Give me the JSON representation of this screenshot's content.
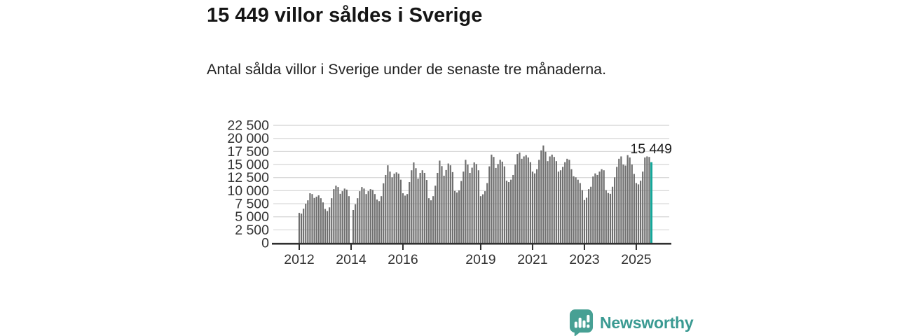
{
  "page": {
    "title": "15 449 villor såldes i Sverige",
    "subtitle": "Antal sålda villor i Sverige under de senaste tre månaderna."
  },
  "footer": {
    "brand": "Newsworthy"
  },
  "colors": {
    "bar": "#6f6f6f",
    "highlight": "#15a79a",
    "grid": "#d9d9d9",
    "axis": "#2f2f2f",
    "tick_text": "#333333",
    "annotation_text": "#1a1a1a",
    "brand": "#3a9a92",
    "brand_icon": "#47a094"
  },
  "chart_data": {
    "type": "bar",
    "title": "15 449 villor såldes i Sverige",
    "subtitle": "Antal sålda villor i Sverige under de senaste tre månaderna.",
    "ylabel": "",
    "xlabel": "",
    "frequency": "monthly",
    "x_start": "2012-01",
    "x_end": "2025-08",
    "missing_months": [
      "2014-01"
    ],
    "ylim": [
      0,
      22500
    ],
    "grid": true,
    "y_ticks": [
      0,
      2500,
      5000,
      7500,
      10000,
      12500,
      15000,
      17500,
      20000,
      22500
    ],
    "y_tick_labels": [
      "0",
      "2 500",
      "5 000",
      "7 500",
      "10 000",
      "12 500",
      "15 000",
      "17 500",
      "20 000",
      "22 500"
    ],
    "x_ticks": [
      {
        "label": "2012",
        "month_index": 0
      },
      {
        "label": "2014",
        "month_index": 24
      },
      {
        "label": "2016",
        "month_index": 48
      },
      {
        "label": "2019",
        "month_index": 84
      },
      {
        "label": "2021",
        "month_index": 108
      },
      {
        "label": "2023",
        "month_index": 132
      },
      {
        "label": "2025",
        "month_index": 156
      }
    ],
    "highlight": {
      "index": 163,
      "value": 15449,
      "label": "15 449"
    },
    "values": [
      5750,
      5600,
      6550,
      7500,
      8150,
      9500,
      9350,
      8600,
      8850,
      9100,
      8550,
      7750,
      6500,
      6100,
      6800,
      8550,
      10300,
      10950,
      10700,
      9400,
      9900,
      10400,
      10200,
      8950,
      null,
      6300,
      7400,
      8550,
      9900,
      10700,
      10400,
      9350,
      9900,
      10300,
      10150,
      9350,
      8300,
      8000,
      8950,
      11400,
      13000,
      14850,
      13650,
      12550,
      13250,
      13500,
      13250,
      12100,
      9500,
      9050,
      9350,
      11650,
      13900,
      15400,
      14300,
      12300,
      13400,
      13900,
      13400,
      12050,
      8550,
      8150,
      8950,
      10950,
      13400,
      15750,
      14700,
      12850,
      13950,
      15200,
      14850,
      13550,
      9950,
      9650,
      10050,
      11850,
      13650,
      15900,
      15000,
      13400,
      14400,
      15400,
      15100,
      13900,
      8950,
      9300,
      9900,
      11450,
      14650,
      16900,
      16450,
      14350,
      15100,
      15900,
      15550,
      14650,
      11900,
      11650,
      12100,
      13000,
      15000,
      17000,
      17300,
      16100,
      16550,
      16800,
      16350,
      15450,
      13650,
      13300,
      14100,
      15900,
      17700,
      18650,
      17450,
      15650,
      16550,
      16900,
      16450,
      15650,
      13650,
      13900,
      14550,
      15450,
      16100,
      15900,
      14100,
      12750,
      12550,
      12100,
      11450,
      10100,
      8200,
      8650,
      10300,
      10750,
      12700,
      13300,
      13000,
      13650,
      14100,
      13900,
      10100,
      9550,
      9400,
      10750,
      12550,
      14550,
      16100,
      16550,
      15000,
      14800,
      16800,
      16350,
      15000,
      13200,
      11450,
      11200,
      11900,
      13650,
      16350,
      16550,
      16450,
      15449
    ]
  }
}
